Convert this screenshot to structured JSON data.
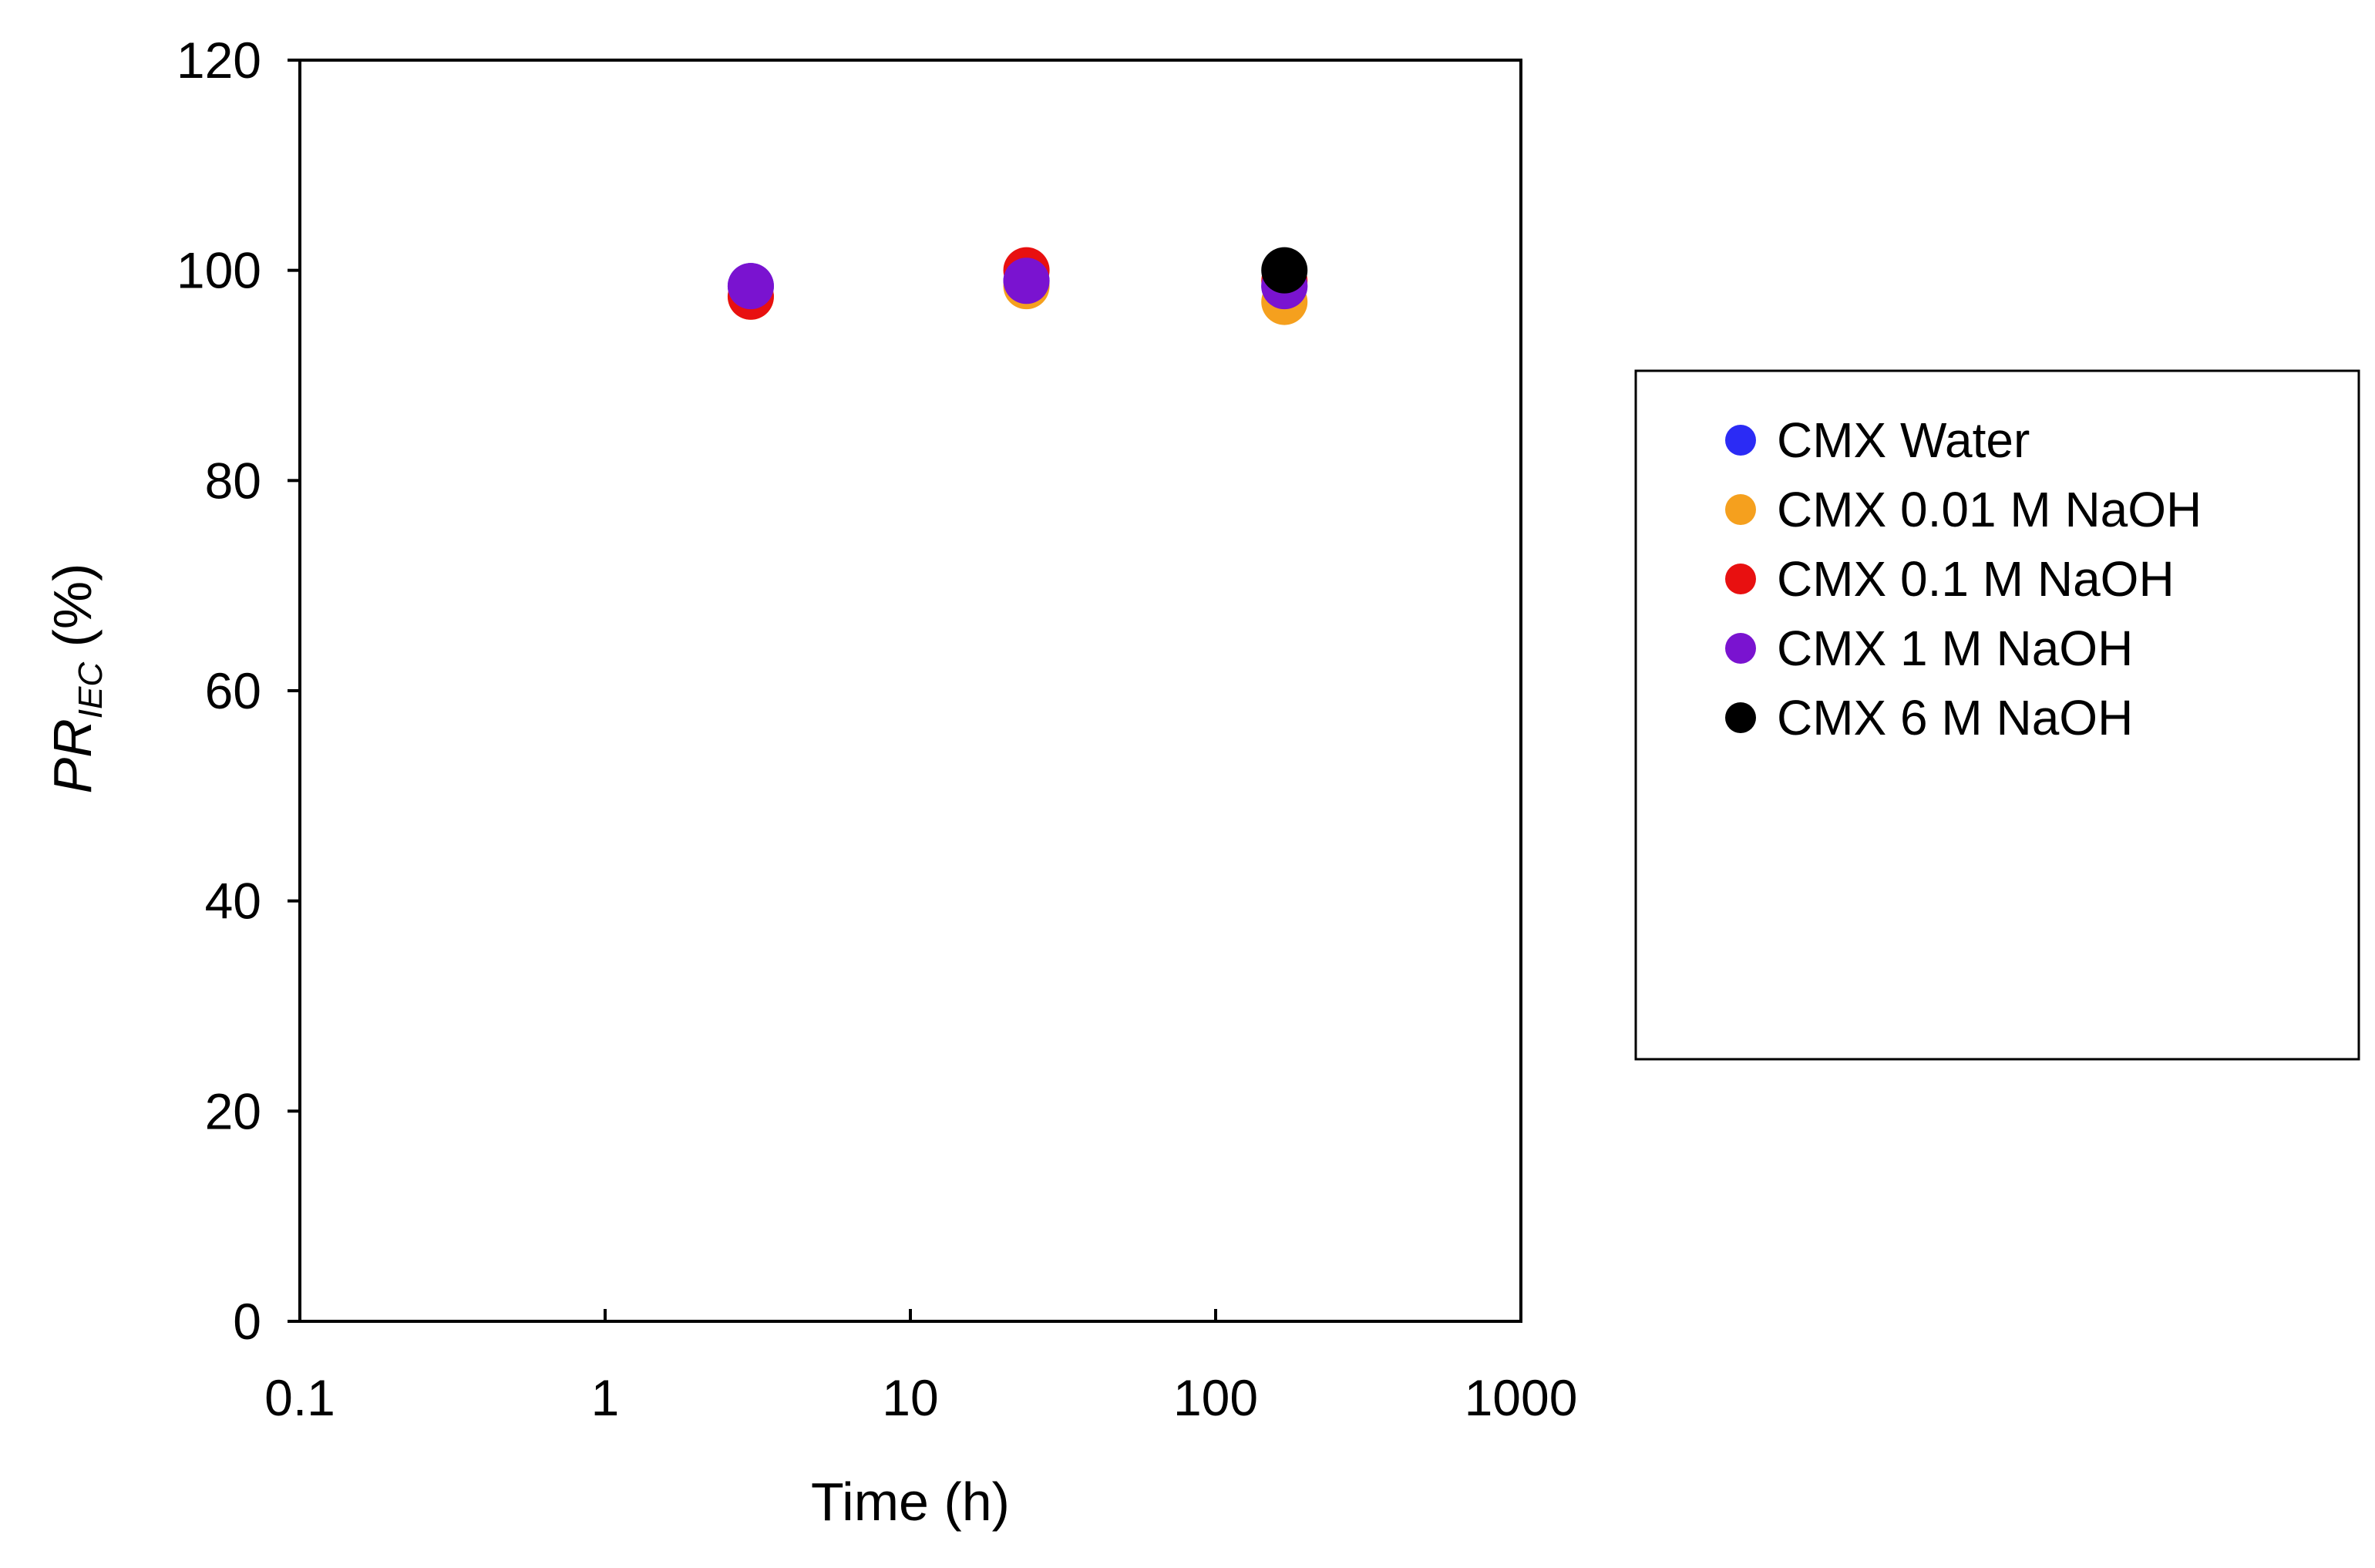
{
  "chart_data": {
    "type": "scatter",
    "title": "",
    "xlabel": "Time (h)",
    "ylabel": {
      "main": "PR",
      "subscript": "IEC",
      "suffix": " (%)"
    },
    "x_scale": "log",
    "xlim": [
      0.1,
      1000
    ],
    "ylim": [
      0,
      120
    ],
    "x_ticks": [
      "0.1",
      "1",
      "10",
      "100",
      "1000"
    ],
    "y_ticks": [
      "0",
      "20",
      "40",
      "60",
      "80",
      "100",
      "120"
    ],
    "grid": false,
    "legend_position": "right",
    "series": [
      {
        "name": "CMX Water",
        "color": "#2B2BF5",
        "points": [
          {
            "x": 3,
            "y": 98.5
          },
          {
            "x": 24,
            "y": 99.0
          },
          {
            "x": 168,
            "y": 98.5
          }
        ]
      },
      {
        "name": "CMX 0.01 M NaOH",
        "color": "#F5A01E",
        "points": [
          {
            "x": 3,
            "y": 97.5
          },
          {
            "x": 24,
            "y": 98.5
          },
          {
            "x": 168,
            "y": 97.0
          }
        ]
      },
      {
        "name": "CMX 0.1 M NaOH",
        "color": "#E81010",
        "points": [
          {
            "x": 3,
            "y": 97.5
          },
          {
            "x": 24,
            "y": 100.0
          },
          {
            "x": 168,
            "y": 99.0
          }
        ]
      },
      {
        "name": "CMX 1 M NaOH",
        "color": "#7A13D0",
        "points": [
          {
            "x": 3,
            "y": 98.5
          },
          {
            "x": 24,
            "y": 99.0
          },
          {
            "x": 168,
            "y": 98.5
          }
        ]
      },
      {
        "name": "CMX 6 M NaOH",
        "color": "#000000",
        "points": [
          {
            "x": 168,
            "y": 100.0
          }
        ]
      }
    ]
  }
}
